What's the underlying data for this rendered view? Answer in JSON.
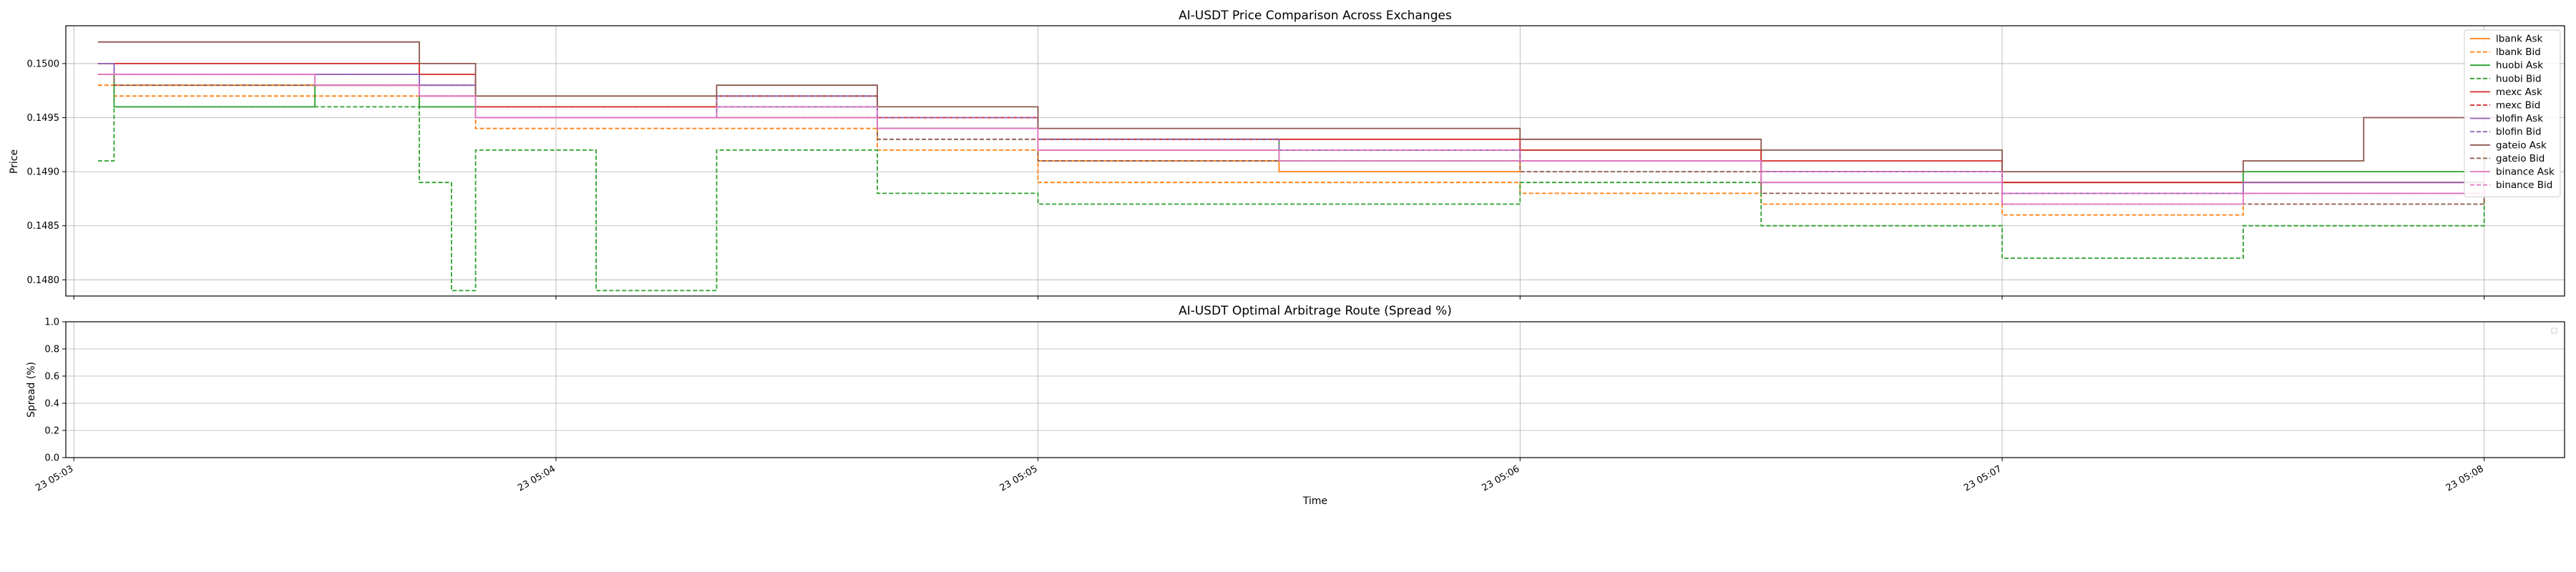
{
  "chart_data": [
    {
      "type": "line",
      "title": "AI-USDT Price Comparison Across Exchanges",
      "xlabel": "",
      "ylabel": "Price",
      "ylim": [
        0.14785,
        0.15035
      ],
      "yticks": [
        0.148,
        0.1485,
        0.149,
        0.1495,
        0.15
      ],
      "ytick_labels": [
        "0.1480",
        "0.1485",
        "0.1490",
        "0.1495",
        "0.1500"
      ],
      "xlim": [
        "05:02:59",
        "05:08:10"
      ],
      "xticks": [
        "05:03:00",
        "05:04:00",
        "05:05:00",
        "05:06:00",
        "05:07:00",
        "05:08:00"
      ],
      "grid": true,
      "legend_position": "top-right",
      "series": [
        {
          "name": "lbank Ask",
          "color": "#ff7f0e",
          "dash": "solid",
          "x": [
            "05:03:03",
            "05:03:05",
            "05:03:30",
            "05:03:43",
            "05:03:50",
            "05:04:20",
            "05:04:40",
            "05:05:00",
            "05:05:30",
            "05:06:00",
            "05:06:30",
            "05:07:00",
            "05:07:30",
            "05:08:00"
          ],
          "y": [
            0.1499,
            0.1498,
            0.1498,
            0.1497,
            0.1495,
            0.1495,
            0.1494,
            0.1491,
            0.149,
            0.1491,
            0.149,
            0.1488,
            0.1489,
            0.1492
          ]
        },
        {
          "name": "lbank Bid",
          "color": "#ff7f0e",
          "dash": "dashed",
          "x": [
            "05:03:03",
            "05:03:05",
            "05:03:30",
            "05:03:43",
            "05:03:50",
            "05:04:20",
            "05:04:40",
            "05:05:00",
            "05:05:30",
            "05:06:00",
            "05:06:30",
            "05:07:00",
            "05:07:30",
            "05:08:00"
          ],
          "y": [
            0.1498,
            0.1497,
            0.1497,
            0.1496,
            0.1494,
            0.1494,
            0.1492,
            0.1489,
            0.1489,
            0.1488,
            0.1487,
            0.1486,
            0.1488,
            0.1491
          ]
        },
        {
          "name": "huobi Ask",
          "color": "#2ca02c",
          "dash": "solid",
          "x": [
            "05:03:03",
            "05:03:05",
            "05:03:30",
            "05:03:43",
            "05:03:50",
            "05:04:20",
            "05:04:40",
            "05:05:00",
            "05:05:30",
            "05:06:00",
            "05:06:30",
            "05:07:00",
            "05:07:30",
            "05:08:00"
          ],
          "y": [
            0.15,
            0.1496,
            0.1498,
            0.1496,
            0.1495,
            0.1497,
            0.1494,
            0.1493,
            0.1491,
            0.1492,
            0.149,
            0.1489,
            0.149,
            0.1491
          ]
        },
        {
          "name": "huobi Bid",
          "color": "#2ca02c",
          "dash": "dashed",
          "x": [
            "05:03:03",
            "05:03:05",
            "05:03:30",
            "05:03:43",
            "05:03:47",
            "05:03:50",
            "05:04:05",
            "05:04:20",
            "05:04:40",
            "05:05:00",
            "05:05:30",
            "05:06:00",
            "05:06:30",
            "05:07:00",
            "05:07:30",
            "05:08:00"
          ],
          "y": [
            0.1491,
            0.1496,
            0.1496,
            0.1489,
            0.1479,
            0.1492,
            0.1479,
            0.1492,
            0.1488,
            0.1487,
            0.1487,
            0.1489,
            0.1485,
            0.1482,
            0.1485,
            0.1488
          ]
        },
        {
          "name": "mexc Ask",
          "color": "#d62728",
          "dash": "solid",
          "x": [
            "05:03:03",
            "05:03:05",
            "05:03:30",
            "05:03:43",
            "05:03:50",
            "05:04:20",
            "05:04:40",
            "05:05:00",
            "05:05:30",
            "05:06:00",
            "05:06:30",
            "05:07:00",
            "05:07:30",
            "05:08:00"
          ],
          "y": [
            0.15,
            0.15,
            0.15,
            0.1499,
            0.1496,
            0.1496,
            0.1495,
            0.1493,
            0.1493,
            0.1492,
            0.1491,
            0.1489,
            0.1489,
            0.1491
          ]
        },
        {
          "name": "mexc Bid",
          "color": "#d62728",
          "dash": "dashed",
          "x": [
            "05:03:03",
            "05:03:05",
            "05:03:30",
            "05:03:43",
            "05:03:50",
            "05:04:20",
            "05:04:40",
            "05:05:00",
            "05:05:30",
            "05:06:00",
            "05:06:30",
            "05:07:00",
            "05:07:30",
            "05:08:00"
          ],
          "y": [
            0.15,
            0.1499,
            0.1499,
            0.1498,
            0.1496,
            0.1497,
            0.1495,
            0.1492,
            0.1492,
            0.1491,
            0.149,
            0.1488,
            0.1488,
            0.1491
          ]
        },
        {
          "name": "blofin Ask",
          "color": "#9467bd",
          "dash": "solid",
          "x": [
            "05:03:03",
            "05:03:05",
            "05:03:30",
            "05:03:43",
            "05:03:50",
            "05:04:20",
            "05:04:40",
            "05:05:00",
            "05:05:30",
            "05:06:00",
            "05:06:30",
            "05:07:00",
            "05:07:30",
            "05:08:00"
          ],
          "y": [
            0.15,
            0.1499,
            0.1499,
            0.1498,
            0.1495,
            0.1496,
            0.1494,
            0.1492,
            0.1492,
            0.1491,
            0.1489,
            0.1488,
            0.1489,
            0.1491
          ]
        },
        {
          "name": "blofin Bid",
          "color": "#9467bd",
          "dash": "dashed",
          "x": [
            "05:03:03",
            "05:03:05",
            "05:03:30",
            "05:03:43",
            "05:03:50",
            "05:04:20",
            "05:04:40",
            "05:05:00",
            "05:05:30",
            "05:06:00",
            "05:06:30",
            "05:07:00",
            "05:07:30",
            "05:08:00"
          ],
          "y": [
            0.1499,
            0.1499,
            0.1499,
            0.1498,
            0.1495,
            0.1497,
            0.1495,
            0.1493,
            0.1492,
            0.1491,
            0.149,
            0.1488,
            0.1488,
            0.1491
          ]
        },
        {
          "name": "gateio Ask",
          "color": "#8c564b",
          "dash": "solid",
          "x": [
            "05:03:03",
            "05:03:05",
            "05:03:30",
            "05:03:43",
            "05:03:50",
            "05:04:20",
            "05:04:40",
            "05:05:00",
            "05:05:30",
            "05:06:00",
            "05:06:30",
            "05:07:00",
            "05:07:30",
            "05:07:45",
            "05:08:00",
            "05:08:05"
          ],
          "y": [
            0.1502,
            0.1502,
            0.1502,
            0.15,
            0.1497,
            0.1498,
            0.1496,
            0.1494,
            0.1494,
            0.1493,
            0.1492,
            0.149,
            0.1491,
            0.1495,
            0.1495,
            0.1495
          ]
        },
        {
          "name": "gateio Bid",
          "color": "#8c564b",
          "dash": "dashed",
          "x": [
            "05:03:03",
            "05:03:05",
            "05:03:30",
            "05:03:43",
            "05:03:50",
            "05:04:20",
            "05:04:40",
            "05:05:00",
            "05:05:30",
            "05:06:00",
            "05:06:30",
            "05:07:00",
            "05:07:30",
            "05:08:00"
          ],
          "y": [
            0.1499,
            0.1498,
            0.1498,
            0.1497,
            0.1495,
            0.1495,
            0.1493,
            0.1491,
            0.1491,
            0.149,
            0.1488,
            0.1487,
            0.1487,
            0.149
          ]
        },
        {
          "name": "binance Ask",
          "color": "#e377c2",
          "dash": "solid",
          "x": [
            "05:03:03",
            "05:03:05",
            "05:03:30",
            "05:03:43",
            "05:03:50",
            "05:04:20",
            "05:04:40",
            "05:05:00",
            "05:05:30",
            "05:06:00",
            "05:06:30",
            "05:07:00",
            "05:07:30",
            "05:08:00"
          ],
          "y": [
            0.1499,
            0.1499,
            0.1498,
            0.1497,
            0.1495,
            0.1495,
            0.1494,
            0.1492,
            0.1491,
            0.1491,
            0.1489,
            0.1487,
            0.1488,
            0.149
          ]
        },
        {
          "name": "binance Bid",
          "color": "#e377c2",
          "dash": "dashed",
          "x": [
            "05:03:03",
            "05:03:05",
            "05:03:30",
            "05:03:43",
            "05:03:50",
            "05:04:20",
            "05:04:40",
            "05:05:00",
            "05:05:30",
            "05:06:00",
            "05:06:30",
            "05:07:00",
            "05:07:30",
            "05:08:00"
          ],
          "y": [
            0.1499,
            0.1499,
            0.1498,
            0.1497,
            0.1495,
            0.1496,
            0.1494,
            0.1492,
            0.1492,
            0.1491,
            0.149,
            0.1488,
            0.1488,
            0.149
          ]
        }
      ]
    },
    {
      "type": "line",
      "title": "AI-USDT Optimal Arbitrage Route (Spread %)",
      "xlabel": "Time",
      "ylabel": "Spread (%)",
      "ylim": [
        0.0,
        1.0
      ],
      "yticks": [
        0.0,
        0.2,
        0.4,
        0.6,
        0.8,
        1.0
      ],
      "ytick_labels": [
        "0.0",
        "0.2",
        "0.4",
        "0.6",
        "0.8",
        "1.0"
      ],
      "xlim": [
        "05:02:59",
        "05:08:10"
      ],
      "xticks": [
        "05:03:00",
        "05:04:00",
        "05:05:00",
        "05:06:00",
        "05:07:00",
        "05:08:00"
      ],
      "xtick_labels": [
        "23 05:03",
        "23 05:04",
        "23 05:05",
        "23 05:06",
        "23 05:07",
        "23 05:08"
      ],
      "grid": true,
      "series": []
    }
  ]
}
